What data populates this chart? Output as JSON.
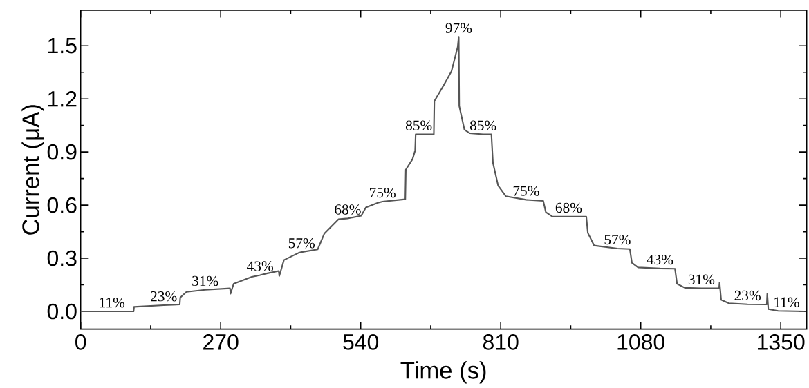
{
  "chart_data": {
    "type": "line",
    "xlabel": "Time (s)",
    "ylabel": "Current (μA)",
    "xlim": [
      0,
      1400
    ],
    "ylim": [
      -0.1,
      1.7
    ],
    "xticks": [
      0,
      270,
      540,
      810,
      1080,
      1350
    ],
    "yticks": [
      {
        "value": 0,
        "label": "0.0"
      },
      {
        "value": 0.3,
        "label": "0.3"
      },
      {
        "value": 0.6,
        "label": "0.6"
      },
      {
        "value": 0.9,
        "label": "0.9"
      },
      {
        "value": 1.2,
        "label": "1.2"
      },
      {
        "value": 1.5,
        "label": "1.5"
      }
    ],
    "x": [
      0,
      60,
      102,
      103,
      160,
      191,
      192,
      204,
      240,
      288,
      289,
      295,
      330,
      346,
      360,
      382,
      383,
      392,
      420,
      426,
      457,
      470,
      497,
      515,
      541,
      550,
      573,
      582,
      626,
      627,
      640,
      645,
      646,
      652,
      681,
      682,
      700,
      715,
      727,
      729,
      730,
      740,
      750,
      776,
      792,
      795,
      805,
      820,
      859,
      892,
      897,
      910,
      941,
      975,
      978,
      990,
      1035,
      1059,
      1063,
      1075,
      1117,
      1146,
      1150,
      1165,
      1197,
      1231,
      1232,
      1235,
      1250,
      1286,
      1323,
      1324,
      1326,
      1345,
      1361,
      1395
    ],
    "series": [
      {
        "color": "#555555",
        "values": [
          0,
          0,
          0,
          0.026,
          0.035,
          0.039,
          0.078,
          0.11,
          0.122,
          0.13,
          0.1,
          0.156,
          0.195,
          0.205,
          0.215,
          0.228,
          0.2,
          0.29,
          0.33,
          0.335,
          0.35,
          0.44,
          0.52,
          0.525,
          0.54,
          0.587,
          0.613,
          0.62,
          0.633,
          0.8,
          0.86,
          0.909,
          1.0,
          1.0,
          1.0,
          1.187,
          1.277,
          1.356,
          1.493,
          1.55,
          1.16,
          1.026,
          1.006,
          1.0,
          1.0,
          0.839,
          0.71,
          0.65,
          0.63,
          0.624,
          0.56,
          0.535,
          0.535,
          0.535,
          0.443,
          0.372,
          0.355,
          0.352,
          0.274,
          0.248,
          0.242,
          0.241,
          0.156,
          0.133,
          0.13,
          0.13,
          0.163,
          0.065,
          0.046,
          0.04,
          0.039,
          0.1,
          0.013,
          0.003,
          0.002,
          0
        ]
      }
    ],
    "annotations": [
      {
        "text": "11%",
        "x": 60,
        "y": 0
      },
      {
        "text": "23%",
        "x": 160,
        "y": 0.035
      },
      {
        "text": "31%",
        "x": 240,
        "y": 0.122
      },
      {
        "text": "43%",
        "x": 346,
        "y": 0.205
      },
      {
        "text": "57%",
        "x": 426,
        "y": 0.335
      },
      {
        "text": "68%",
        "x": 515,
        "y": 0.525
      },
      {
        "text": "75%",
        "x": 582,
        "y": 0.62
      },
      {
        "text": "85%",
        "x": 652,
        "y": 1.0
      },
      {
        "text": "97%",
        "x": 729,
        "y": 1.55
      },
      {
        "text": "85%",
        "x": 776,
        "y": 1.0
      },
      {
        "text": "75%",
        "x": 859,
        "y": 0.63
      },
      {
        "text": "68%",
        "x": 941,
        "y": 0.535
      },
      {
        "text": "57%",
        "x": 1035,
        "y": 0.355
      },
      {
        "text": "43%",
        "x": 1117,
        "y": 0.242
      },
      {
        "text": "31%",
        "x": 1197,
        "y": 0.13
      },
      {
        "text": "23%",
        "x": 1286,
        "y": 0.04
      },
      {
        "text": "11%",
        "x": 1361,
        "y": 0.002
      }
    ]
  }
}
